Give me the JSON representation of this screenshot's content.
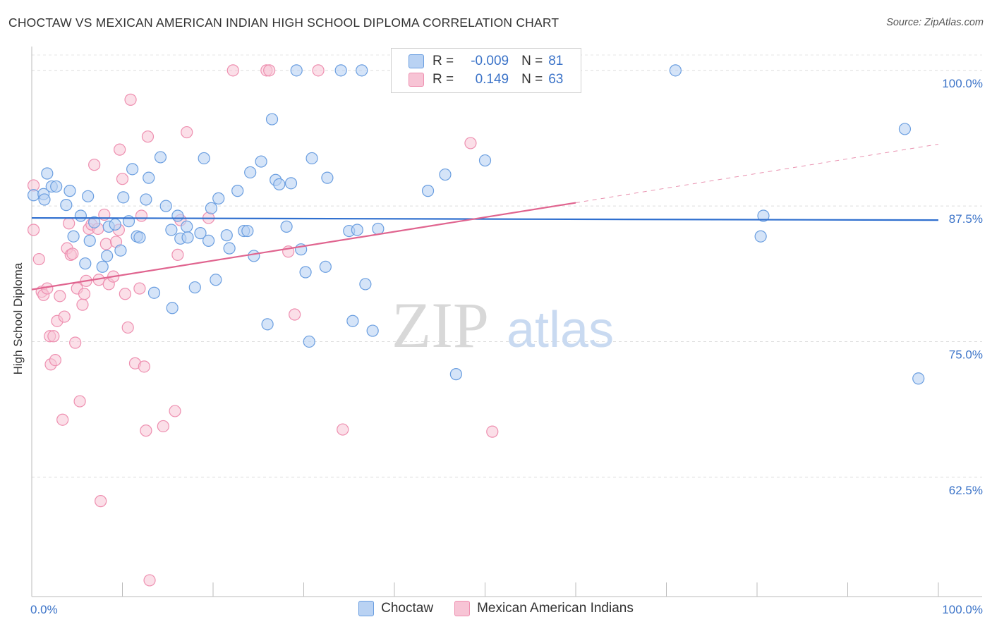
{
  "title": "CHOCTAW VS MEXICAN AMERICAN INDIAN HIGH SCHOOL DIPLOMA CORRELATION CHART",
  "source": "Source: ZipAtlas.com",
  "watermark": {
    "zip": "ZIP",
    "atlas": "atlas"
  },
  "legend": {
    "rows": [
      {
        "r_label": "R =",
        "r_value": "-0.009",
        "n_label": "N =",
        "n_value": "81"
      },
      {
        "r_label": "R =",
        "r_value": "0.149",
        "n_label": "N =",
        "n_value": "63"
      }
    ]
  },
  "bottom_legend": [
    "Choctaw",
    "Mexican American Indians"
  ],
  "colors": {
    "choctaw": "#6a9ee0",
    "choctaw_fill": "#b9d2f3",
    "choctaw_line": "#2f6fcf",
    "mexican": "#ee8fb0",
    "mexican_fill": "#f7c4d5",
    "mexican_line": "#e0648f",
    "tick_label": "#3b73c8"
  },
  "chart_data": {
    "type": "scatter",
    "title": "CHOCTAW VS MEXICAN AMERICAN INDIAN HIGH SCHOOL DIPLOMA CORRELATION CHART",
    "xlabel": "",
    "ylabel": "High School Diploma",
    "xlim": [
      0,
      100
    ],
    "ylim": [
      51.5,
      102.2
    ],
    "x_tick_labels": [
      "0.0%",
      "100.0%"
    ],
    "y_ticks": [
      62.5,
      75.0,
      87.5,
      100.0
    ],
    "y_tick_labels": [
      "62.5%",
      "75.0%",
      "87.5%",
      "100.0%"
    ],
    "grid": "horizontal dashed",
    "legend_position": "top-center",
    "series": [
      {
        "name": "Choctaw",
        "r": -0.009,
        "n": 81,
        "trend": {
          "x0": 0,
          "y0": 86.4,
          "x1": 100,
          "y1": 86.2
        },
        "points": [
          [
            0.2,
            88.5
          ],
          [
            1.3,
            88.6
          ],
          [
            1.4,
            88.1
          ],
          [
            1.7,
            90.5
          ],
          [
            2.2,
            89.3
          ],
          [
            2.7,
            89.3
          ],
          [
            3.8,
            87.6
          ],
          [
            4.2,
            88.9
          ],
          [
            5.4,
            86.6
          ],
          [
            4.6,
            84.7
          ],
          [
            6.2,
            88.4
          ],
          [
            6.9,
            86.0
          ],
          [
            5.9,
            82.2
          ],
          [
            6.4,
            84.3
          ],
          [
            7.8,
            81.9
          ],
          [
            8.3,
            82.9
          ],
          [
            8.5,
            85.6
          ],
          [
            9.2,
            85.8
          ],
          [
            10.1,
            88.3
          ],
          [
            9.8,
            83.4
          ],
          [
            10.7,
            86.1
          ],
          [
            11.1,
            90.9
          ],
          [
            11.6,
            84.7
          ],
          [
            11.9,
            84.6
          ],
          [
            12.6,
            88.1
          ],
          [
            12.9,
            90.1
          ],
          [
            13.5,
            79.5
          ],
          [
            14.2,
            92.0
          ],
          [
            14.8,
            87.5
          ],
          [
            15.4,
            85.3
          ],
          [
            15.5,
            78.1
          ],
          [
            16.1,
            86.6
          ],
          [
            16.4,
            84.5
          ],
          [
            17.1,
            85.6
          ],
          [
            17.2,
            84.6
          ],
          [
            18.0,
            80.0
          ],
          [
            18.6,
            85.0
          ],
          [
            19.0,
            91.9
          ],
          [
            19.5,
            84.3
          ],
          [
            19.8,
            87.3
          ],
          [
            20.3,
            80.7
          ],
          [
            20.6,
            88.2
          ],
          [
            21.5,
            84.8
          ],
          [
            21.8,
            83.6
          ],
          [
            22.7,
            88.9
          ],
          [
            23.4,
            85.2
          ],
          [
            23.8,
            85.2
          ],
          [
            24.1,
            90.6
          ],
          [
            24.5,
            82.9
          ],
          [
            25.3,
            91.6
          ],
          [
            26.0,
            76.6
          ],
          [
            26.5,
            95.5
          ],
          [
            26.9,
            89.9
          ],
          [
            27.3,
            89.5
          ],
          [
            28.1,
            85.6
          ],
          [
            28.6,
            89.6
          ],
          [
            29.7,
            83.5
          ],
          [
            29.2,
            100.0
          ],
          [
            30.2,
            81.4
          ],
          [
            30.6,
            75.0
          ],
          [
            30.9,
            91.9
          ],
          [
            32.4,
            81.9
          ],
          [
            32.6,
            90.1
          ],
          [
            34.1,
            100.0
          ],
          [
            35.0,
            85.2
          ],
          [
            35.4,
            76.9
          ],
          [
            35.9,
            85.3
          ],
          [
            36.4,
            100.0
          ],
          [
            36.8,
            80.3
          ],
          [
            37.6,
            76.0
          ],
          [
            38.2,
            85.4
          ],
          [
            43.7,
            88.9
          ],
          [
            45.6,
            90.4
          ],
          [
            46.8,
            72.0
          ],
          [
            50.0,
            91.7
          ],
          [
            71.0,
            100.0
          ],
          [
            80.4,
            84.7
          ],
          [
            80.7,
            86.6
          ],
          [
            96.3,
            94.6
          ],
          [
            97.8,
            71.6
          ]
        ]
      },
      {
        "name": "Mexican American Indians",
        "r": 0.149,
        "n": 63,
        "trend": {
          "x0": 0,
          "y0": 79.8,
          "x1": 60,
          "y1": 87.8
        },
        "trend_dashed": {
          "x0": 60,
          "y0": 87.8,
          "x1": 100,
          "y1": 93.2
        },
        "points": [
          [
            0.2,
            89.4
          ],
          [
            0.2,
            85.3
          ],
          [
            0.8,
            82.6
          ],
          [
            1.1,
            79.6
          ],
          [
            1.3,
            79.3
          ],
          [
            1.7,
            79.9
          ],
          [
            2.0,
            75.5
          ],
          [
            2.1,
            72.9
          ],
          [
            2.4,
            75.5
          ],
          [
            2.6,
            73.3
          ],
          [
            2.8,
            76.9
          ],
          [
            3.1,
            79.2
          ],
          [
            3.4,
            67.8
          ],
          [
            3.6,
            77.3
          ],
          [
            3.9,
            83.6
          ],
          [
            4.1,
            85.9
          ],
          [
            4.3,
            83.0
          ],
          [
            4.5,
            83.1
          ],
          [
            4.8,
            74.9
          ],
          [
            5.0,
            79.9
          ],
          [
            5.3,
            69.5
          ],
          [
            5.6,
            78.4
          ],
          [
            5.8,
            79.4
          ],
          [
            6.0,
            80.6
          ],
          [
            6.3,
            85.4
          ],
          [
            6.6,
            85.8
          ],
          [
            6.9,
            91.3
          ],
          [
            7.3,
            85.4
          ],
          [
            7.4,
            80.7
          ],
          [
            7.6,
            60.3
          ],
          [
            8.0,
            86.7
          ],
          [
            8.2,
            84.0
          ],
          [
            8.5,
            80.3
          ],
          [
            9.0,
            81.0
          ],
          [
            9.3,
            84.2
          ],
          [
            9.6,
            85.3
          ],
          [
            9.7,
            92.7
          ],
          [
            10.0,
            90.0
          ],
          [
            10.3,
            79.4
          ],
          [
            10.6,
            76.3
          ],
          [
            10.9,
            97.3
          ],
          [
            11.4,
            73.0
          ],
          [
            11.9,
            79.9
          ],
          [
            12.1,
            86.6
          ],
          [
            12.4,
            72.7
          ],
          [
            12.6,
            66.8
          ],
          [
            12.8,
            93.9
          ],
          [
            13.0,
            53.0
          ],
          [
            14.5,
            67.2
          ],
          [
            15.8,
            68.6
          ],
          [
            16.1,
            83.0
          ],
          [
            16.4,
            86.2
          ],
          [
            17.1,
            94.3
          ],
          [
            19.5,
            86.4
          ],
          [
            22.2,
            100.0
          ],
          [
            25.9,
            100.0
          ],
          [
            26.2,
            100.0
          ],
          [
            28.3,
            83.3
          ],
          [
            29.0,
            77.5
          ],
          [
            31.6,
            100.0
          ],
          [
            34.3,
            66.9
          ],
          [
            48.4,
            93.3
          ],
          [
            50.8,
            66.7
          ]
        ]
      }
    ]
  }
}
